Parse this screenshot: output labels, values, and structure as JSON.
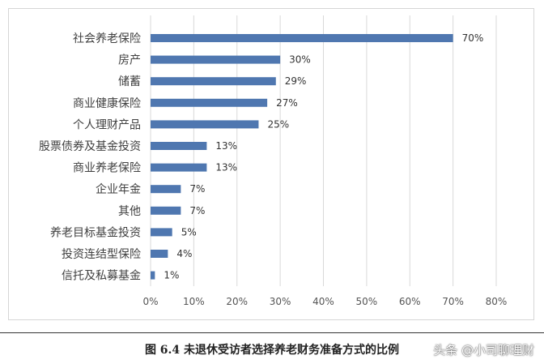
{
  "chart_data": {
    "type": "bar",
    "orientation": "horizontal",
    "categories": [
      "社会养老保险",
      "房产",
      "储蓄",
      "商业健康保险",
      "个人理财产品",
      "股票债券及基金投资",
      "商业养老保险",
      "企业年金",
      "其他",
      "养老目标基金投资",
      "投资连结型保险",
      "信托及私募基金"
    ],
    "values": [
      70,
      30,
      29,
      27,
      25,
      13,
      13,
      7,
      7,
      5,
      4,
      1
    ],
    "value_labels": [
      "70%",
      "30%",
      "29%",
      "27%",
      "25%",
      "13%",
      "13%",
      "7%",
      "7%",
      "5%",
      "4%",
      "1%"
    ],
    "x_ticks": [
      "0%",
      "10%",
      "20%",
      "30%",
      "40%",
      "50%",
      "60%",
      "70%",
      "80%"
    ],
    "xlim": [
      0,
      80
    ],
    "grid": true,
    "bar_color": "#4f77b0"
  },
  "caption": "图 6.4  未退休受访者选择养老财务准备方式的比例",
  "watermark": "头条 @小司聊理财"
}
